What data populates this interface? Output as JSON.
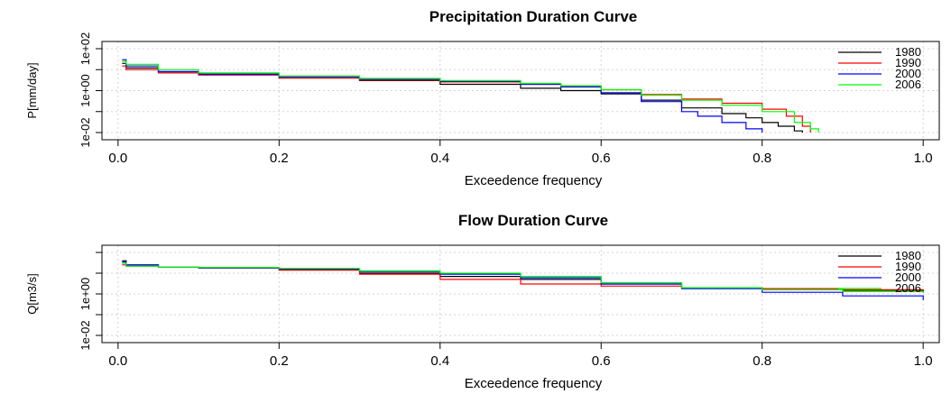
{
  "chart_data": [
    {
      "type": "line",
      "title": "Precipitation Duration Curve",
      "xlabel": "Exceedence frequency",
      "ylabel": "P[mm/day]",
      "xlim": [
        -0.02,
        1.02
      ],
      "ylim": [
        0.01,
        100
      ],
      "yscale": "log",
      "grid": true,
      "legend": "top-right",
      "x_ticks": [
        {
          "value": 0.0,
          "label": "0.0"
        },
        {
          "value": 0.2,
          "label": "0.2"
        },
        {
          "value": 0.4,
          "label": "0.4"
        },
        {
          "value": 0.6,
          "label": "0.6"
        },
        {
          "value": 0.8,
          "label": "0.8"
        },
        {
          "value": 1.0,
          "label": "1.0"
        }
      ],
      "y_ticks": [
        {
          "value": 100,
          "label": "1e+02"
        },
        {
          "value": 10,
          "label": ""
        },
        {
          "value": 1,
          "label": "1e+00"
        },
        {
          "value": 0.1,
          "label": ""
        },
        {
          "value": 0.01,
          "label": "1e-02"
        }
      ],
      "series": [
        {
          "name": "1980",
          "color": "#000000",
          "x": [
            0.005,
            0.01,
            0.05,
            0.1,
            0.2,
            0.3,
            0.4,
            0.5,
            0.55,
            0.6,
            0.65,
            0.7,
            0.75,
            0.78,
            0.8,
            0.82,
            0.84,
            0.85
          ],
          "y": [
            20,
            12,
            8,
            6,
            4,
            3,
            2,
            1.3,
            1,
            0.7,
            0.35,
            0.15,
            0.08,
            0.05,
            0.03,
            0.02,
            0.012,
            0.01
          ]
        },
        {
          "name": "1990",
          "color": "#ff0000",
          "x": [
            0.005,
            0.01,
            0.05,
            0.1,
            0.2,
            0.3,
            0.4,
            0.5,
            0.55,
            0.6,
            0.65,
            0.7,
            0.75,
            0.8,
            0.83,
            0.85,
            0.86
          ],
          "y": [
            15,
            10,
            7,
            5.5,
            4,
            3.2,
            2.6,
            2,
            1.6,
            1.1,
            0.65,
            0.4,
            0.25,
            0.13,
            0.06,
            0.02,
            0.01
          ]
        },
        {
          "name": "2000",
          "color": "#0000ff",
          "x": [
            0.005,
            0.01,
            0.05,
            0.1,
            0.2,
            0.3,
            0.4,
            0.5,
            0.55,
            0.6,
            0.65,
            0.7,
            0.72,
            0.75,
            0.78,
            0.8
          ],
          "y": [
            30,
            15,
            8,
            6,
            4.5,
            3.5,
            2.8,
            2,
            1.5,
            0.8,
            0.3,
            0.1,
            0.06,
            0.03,
            0.015,
            0.01
          ]
        },
        {
          "name": "2006",
          "color": "#00ff00",
          "x": [
            0.005,
            0.01,
            0.05,
            0.1,
            0.2,
            0.3,
            0.4,
            0.5,
            0.55,
            0.6,
            0.65,
            0.7,
            0.75,
            0.8,
            0.84,
            0.86,
            0.87
          ],
          "y": [
            25,
            18,
            10,
            7,
            5,
            3.8,
            3,
            2.2,
            1.7,
            1.1,
            0.6,
            0.35,
            0.2,
            0.1,
            0.03,
            0.015,
            0.01
          ]
        }
      ]
    },
    {
      "type": "line",
      "title": "Flow Duration Curve",
      "xlabel": "Exceedence frequency",
      "ylabel": "Q[m3/s]",
      "xlim": [
        -0.02,
        1.02
      ],
      "ylim": [
        0.01,
        100
      ],
      "yscale": "log",
      "grid": true,
      "legend": "top-right",
      "x_ticks": [
        {
          "value": 0.0,
          "label": "0.0"
        },
        {
          "value": 0.2,
          "label": "0.2"
        },
        {
          "value": 0.4,
          "label": "0.4"
        },
        {
          "value": 0.6,
          "label": "0.6"
        },
        {
          "value": 0.8,
          "label": "0.8"
        },
        {
          "value": 1.0,
          "label": "1.0"
        }
      ],
      "y_ticks": [
        {
          "value": 100,
          "label": ""
        },
        {
          "value": 10,
          "label": ""
        },
        {
          "value": 1,
          "label": "1e+00"
        },
        {
          "value": 0.1,
          "label": ""
        },
        {
          "value": 0.01,
          "label": "1e-02"
        }
      ],
      "series": [
        {
          "name": "1980",
          "color": "#000000",
          "x": [
            0.005,
            0.01,
            0.05,
            0.1,
            0.2,
            0.3,
            0.4,
            0.5,
            0.6,
            0.7,
            0.8,
            0.9,
            1.0
          ],
          "y": [
            40,
            25,
            20,
            18,
            15,
            10,
            7,
            5,
            3,
            2,
            1.8,
            1.5,
            1.2
          ]
        },
        {
          "name": "1990",
          "color": "#ff0000",
          "x": [
            0.005,
            0.01,
            0.05,
            0.1,
            0.2,
            0.3,
            0.4,
            0.5,
            0.6,
            0.7,
            0.8,
            0.9,
            1.0
          ],
          "y": [
            25,
            22,
            20,
            18,
            14,
            9,
            5,
            3,
            2.4,
            2,
            1.8,
            1.6,
            1.5
          ]
        },
        {
          "name": "2000",
          "color": "#0000ff",
          "x": [
            0.005,
            0.01,
            0.05,
            0.1,
            0.2,
            0.3,
            0.4,
            0.5,
            0.6,
            0.7,
            0.8,
            0.9,
            1.0
          ],
          "y": [
            35,
            25,
            20,
            18,
            16,
            12,
            9,
            6,
            3,
            1.8,
            1.2,
            0.8,
            0.5
          ]
        },
        {
          "name": "2006",
          "color": "#00ff00",
          "x": [
            0.005,
            0.01,
            0.05,
            0.1,
            0.2,
            0.3,
            0.4,
            0.5,
            0.6,
            0.7,
            0.8,
            0.9,
            1.0
          ],
          "y": [
            30,
            22,
            20,
            19,
            17,
            13,
            10,
            7,
            3.5,
            2,
            1.6,
            1.3,
            1.1
          ]
        }
      ]
    }
  ]
}
